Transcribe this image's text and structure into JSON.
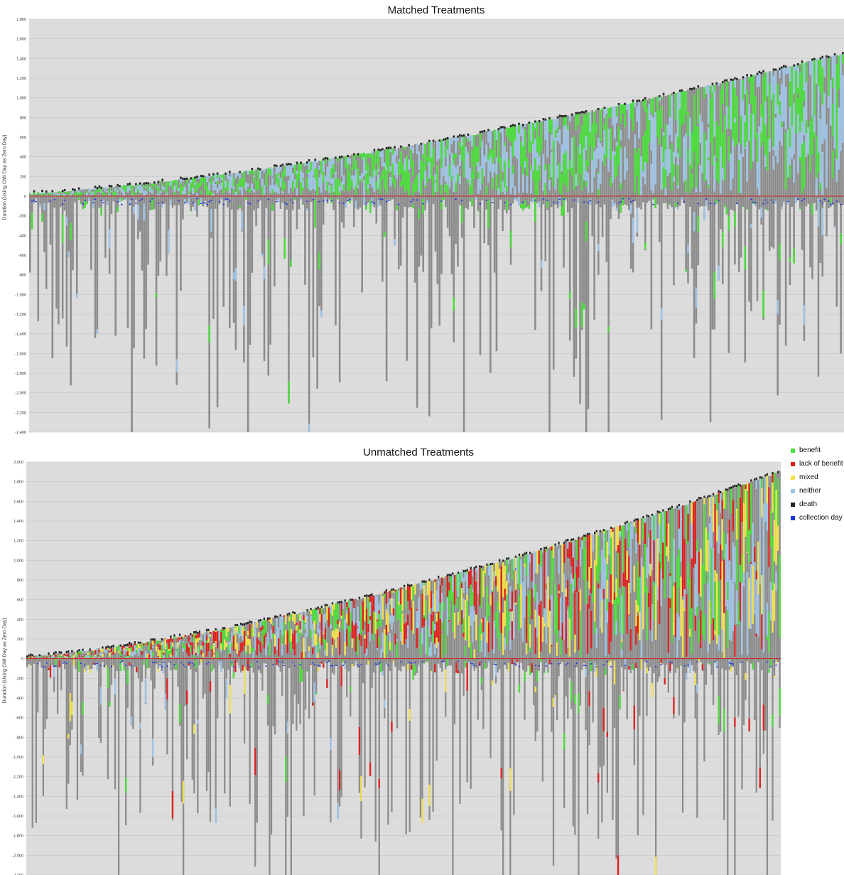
{
  "chart_data": [
    {
      "type": "bar",
      "title": "Matched Treatments",
      "ylabel": "Duration (Using CMI Day as Zero Day)",
      "xlabel": "",
      "ylim": [
        -2400,
        1800
      ],
      "yticks": [
        "1,800",
        "1,600",
        "1,400",
        "1,200",
        "1,000",
        "800",
        "600",
        "400",
        "200",
        "0",
        "-200",
        "-400",
        "-600",
        "-800",
        "-1,000",
        "-1,200",
        "-1,400",
        "-1,600",
        "-1,800",
        "-2,000",
        "-2,200",
        "-2,400"
      ],
      "grid": true,
      "bar_count": 400,
      "positive_duration_range": [
        30,
        1450
      ],
      "negative_duration_range": [
        -30,
        -2400
      ],
      "dominant_categories": [
        "benefit",
        "neither"
      ],
      "legend": "right"
    },
    {
      "type": "bar",
      "title": "Unmatched Treatments",
      "ylabel": "Duration (Using CMI Day as Zero Day)",
      "xlabel": "",
      "ylim": [
        -2200,
        2000
      ],
      "yticks": [
        "2,000",
        "1,800",
        "1,600",
        "1,400",
        "1,200",
        "1,000",
        "800",
        "600",
        "400",
        "200",
        "0",
        "-200",
        "-400",
        "-600",
        "-800",
        "-1,000",
        "-1,200",
        "-1,400",
        "-1,600",
        "-1,800",
        "-2,000",
        "-2,200"
      ],
      "grid": true,
      "bar_count": 420,
      "positive_duration_range": [
        20,
        1900
      ],
      "negative_duration_range": [
        -30,
        -2200
      ],
      "dominant_categories": [
        "benefit",
        "lack of benefit",
        "mixed",
        "neither"
      ],
      "legend": "right"
    }
  ],
  "legend": [
    {
      "label": "benefit",
      "color": "#4cdc3c"
    },
    {
      "label": "lack of benefit",
      "color": "#e01f1f"
    },
    {
      "label": "mixed",
      "color": "#f2e34a"
    },
    {
      "label": "neither",
      "color": "#9fc3e6"
    },
    {
      "label": "death",
      "color": "#222222"
    },
    {
      "label": "collection day",
      "color": "#2233dd"
    }
  ],
  "colors": {
    "treatment_bar": "#8c8c8c",
    "plot_background": "#dcdcdc",
    "zero_line": "#cc2222"
  }
}
